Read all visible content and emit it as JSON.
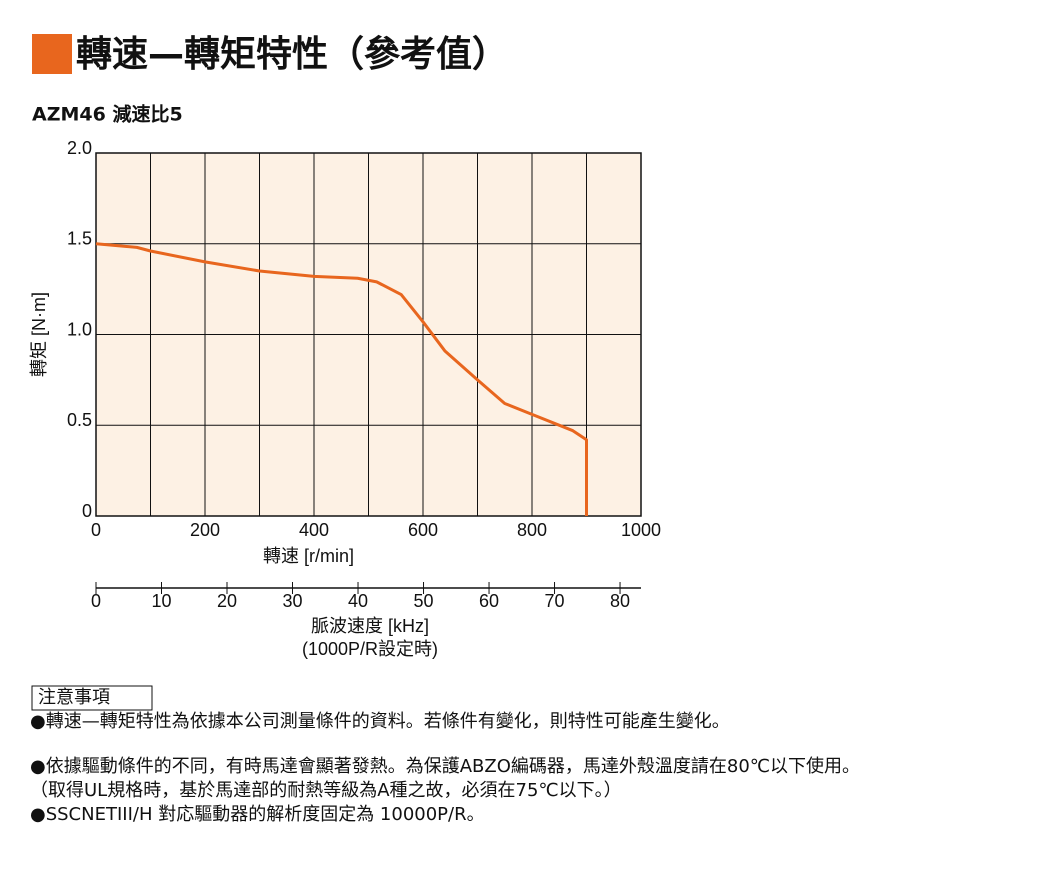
{
  "title": "轉速—轉矩特性（參考值）",
  "subtitle": "AZM46 減速比5",
  "chart_data": {
    "type": "line",
    "xlabel": "轉速 [r/min]",
    "ylabel": "轉矩 [N·m]",
    "x2label": "脈波速度 [kHz]",
    "x2sublabel": "(1000P/R設定時)",
    "xlim": [
      0,
      1000
    ],
    "xticks": [
      0,
      200,
      400,
      600,
      800,
      1000
    ],
    "ylim": [
      0,
      2
    ],
    "yticks": [
      0,
      0.5,
      {
        "value": 1,
        "label": "1.0"
      },
      1.5,
      {
        "value": 2,
        "label": "2.0"
      }
    ],
    "x2lim": [
      0,
      83.2
    ],
    "x2ticks": [
      0,
      10,
      20,
      30,
      40,
      50,
      60,
      70,
      80
    ],
    "grid": true,
    "background": "#fdf1e4",
    "series": [
      {
        "color": "#e8661e",
        "x": [
          0,
          75,
          100,
          200,
          300,
          400,
          480,
          515,
          560,
          600,
          640,
          700,
          750,
          800,
          875,
          900,
          900
        ],
        "values": [
          1.5,
          1.48,
          1.46,
          1.4,
          1.35,
          1.32,
          1.31,
          1.29,
          1.22,
          1.07,
          0.91,
          0.75,
          0.62,
          0.56,
          0.47,
          0.42,
          0
        ]
      }
    ]
  },
  "notes": {
    "heading": "注意事項",
    "items": [
      "●轉速—轉矩特性為依據本公司測量條件的資料。若條件有變化，則特性可能產生變化。",
      "●依據驅動條件的不同，有時馬達會顯著發熱。為保護ABZO編碼器，馬達外殼溫度請在80℃以下使用。",
      "（取得UL規格時，基於馬達部的耐熱等級為A種之故，必須在75℃以下。）",
      "●SSCNETIII/H 對応驅動器的解析度固定為 10000P/R。"
    ]
  }
}
